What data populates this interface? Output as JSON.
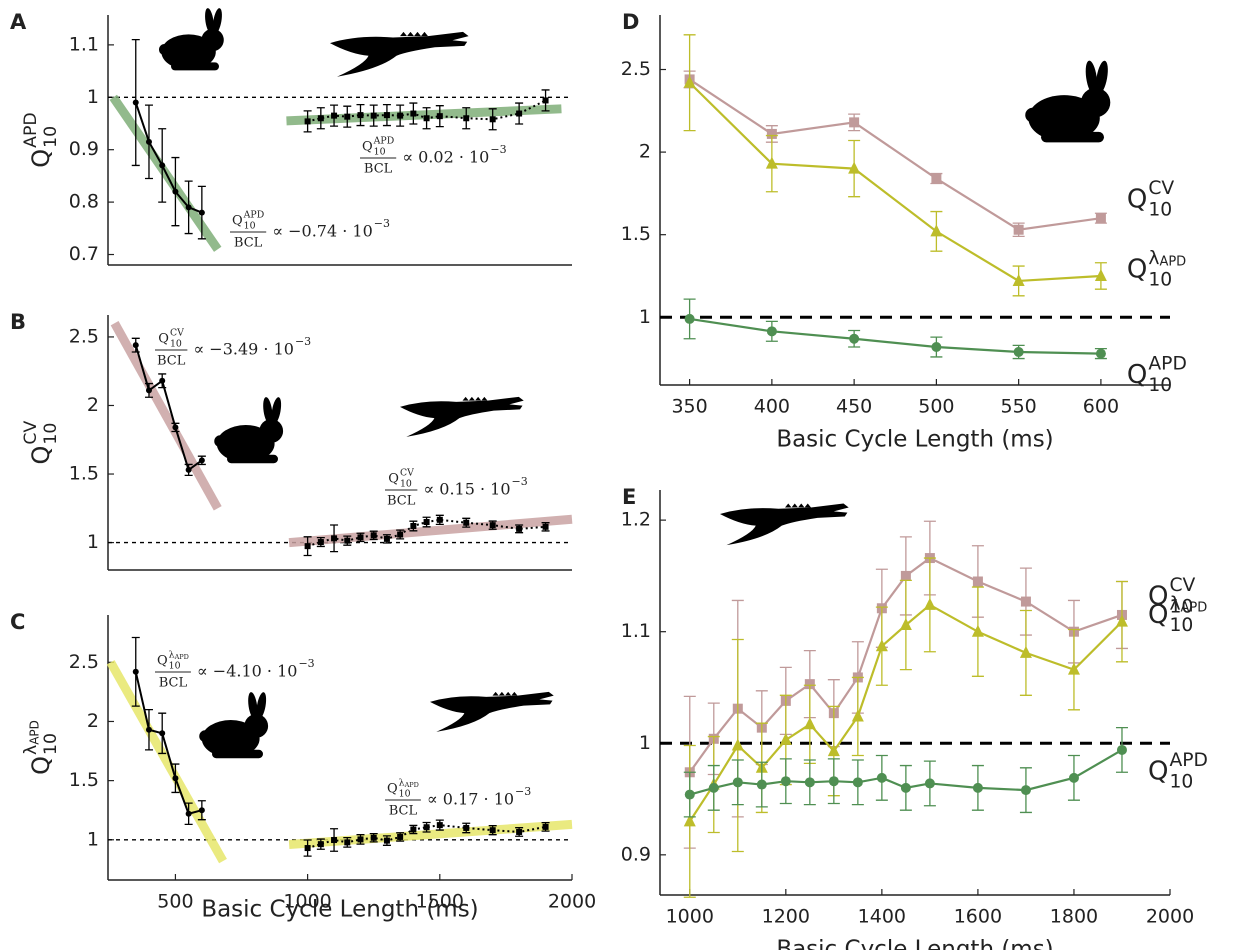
{
  "chart_data": [
    {
      "panel": "A",
      "type": "line",
      "xlim": [
        245,
        2000
      ],
      "ylim": [
        0.68,
        1.157
      ],
      "yticks": [
        0.7,
        0.8,
        0.9,
        1,
        1.1
      ],
      "refline": 1,
      "ylabel": {
        "base": "Q",
        "sub": "10",
        "sup": "APD"
      },
      "fits": [
        {
          "color": "#7fae78",
          "x": [
            265,
            660
          ],
          "y": [
            1.0,
            0.71
          ]
        },
        {
          "color": "#7fae78",
          "x": [
            920,
            1960
          ],
          "y": [
            0.955,
            0.978
          ]
        }
      ],
      "series": [
        {
          "color": "#000000",
          "style": "solid",
          "marker": "circle",
          "x": [
            350,
            400,
            450,
            500,
            550,
            600
          ],
          "values": [
            0.99,
            0.915,
            0.87,
            0.82,
            0.79,
            0.78
          ],
          "errors": [
            0.12,
            0.07,
            0.07,
            0.065,
            0.05,
            0.05
          ]
        },
        {
          "color": "#000000",
          "style": "dotted",
          "marker": "square",
          "x": [
            1000,
            1050,
            1100,
            1150,
            1200,
            1250,
            1300,
            1350,
            1400,
            1450,
            1500,
            1600,
            1700,
            1800,
            1900
          ],
          "values": [
            0.954,
            0.96,
            0.965,
            0.963,
            0.966,
            0.965,
            0.966,
            0.965,
            0.969,
            0.96,
            0.964,
            0.96,
            0.958,
            0.969,
            0.994
          ],
          "errors": [
            0.02,
            0.02,
            0.02,
            0.02,
            0.02,
            0.02,
            0.02,
            0.02,
            0.02,
            0.02,
            0.02,
            0.02,
            0.02,
            0.02,
            0.02
          ]
        }
      ],
      "annotations": [
        {
          "num": {
            "base": "Q",
            "sub": "10",
            "sup": "APD"
          },
          "den": "BCL",
          "rel": "∝ −0.74 · 10",
          "exp": "−3"
        },
        {
          "num": {
            "base": "Q",
            "sub": "10",
            "sup": "APD"
          },
          "den": "BCL",
          "rel": "∝ 0.02 · 10",
          "exp": "−3"
        }
      ]
    },
    {
      "panel": "B",
      "type": "line",
      "xlim": [
        245,
        2000
      ],
      "ylim": [
        0.8,
        2.66
      ],
      "yticks": [
        1,
        1.5,
        2,
        2.5
      ],
      "refline": 1,
      "ylabel": {
        "base": "Q",
        "sub": "10",
        "sup": "CV"
      },
      "fits": [
        {
          "color": "#c9a2a2",
          "x": [
            270,
            660
          ],
          "y": [
            2.6,
            1.25
          ]
        },
        {
          "color": "#c9a2a2",
          "x": [
            930,
            2000
          ],
          "y": [
            1.0,
            1.17
          ]
        }
      ],
      "series": [
        {
          "color": "#000000",
          "style": "solid",
          "marker": "circle",
          "x": [
            350,
            400,
            450,
            500,
            550,
            600
          ],
          "values": [
            2.44,
            2.11,
            2.18,
            1.84,
            1.53,
            1.6
          ],
          "errors": [
            0.05,
            0.05,
            0.05,
            0.03,
            0.04,
            0.03
          ]
        },
        {
          "color": "#000000",
          "style": "dotted",
          "marker": "square",
          "x": [
            1000,
            1050,
            1100,
            1150,
            1200,
            1250,
            1300,
            1350,
            1400,
            1450,
            1500,
            1600,
            1700,
            1800,
            1900
          ],
          "values": [
            0.974,
            1.004,
            1.031,
            1.014,
            1.038,
            1.053,
            1.027,
            1.059,
            1.121,
            1.15,
            1.166,
            1.145,
            1.127,
            1.1,
            1.115
          ],
          "errors": [
            0.068,
            0.032,
            0.097,
            0.033,
            0.03,
            0.03,
            0.03,
            0.032,
            0.035,
            0.035,
            0.033,
            0.032,
            0.03,
            0.028,
            0.03
          ]
        }
      ],
      "annotations": [
        {
          "num": {
            "base": "Q",
            "sub": "10",
            "sup": "CV"
          },
          "den": "BCL",
          "rel": "∝ −3.49 · 10",
          "exp": "−3"
        },
        {
          "num": {
            "base": "Q",
            "sub": "10",
            "sup": "CV"
          },
          "den": "BCL",
          "rel": "∝ 0.15 · 10",
          "exp": "−3"
        }
      ]
    },
    {
      "panel": "C",
      "type": "line",
      "xlim": [
        245,
        2000
      ],
      "ylim": [
        0.66,
        2.9
      ],
      "yticks": [
        1,
        1.5,
        2,
        2.5
      ],
      "xticks": [
        500,
        1000,
        1500,
        2000
      ],
      "refline": 1,
      "xlabel": "Basic Cycle Length (ms)",
      "ylabel": {
        "base": "Q",
        "sub": "10",
        "sup": "λ",
        "supsub": "APD"
      },
      "fits": [
        {
          "color": "#e6e66a",
          "x": [
            255,
            680
          ],
          "y": [
            2.5,
            0.82
          ]
        },
        {
          "color": "#e6e66a",
          "x": [
            930,
            2000
          ],
          "y": [
            0.96,
            1.13
          ]
        }
      ],
      "series": [
        {
          "color": "#000000",
          "style": "solid",
          "marker": "circle",
          "x": [
            350,
            400,
            450,
            500,
            550,
            600
          ],
          "values": [
            2.42,
            1.93,
            1.9,
            1.52,
            1.22,
            1.25
          ],
          "errors": [
            0.29,
            0.17,
            0.17,
            0.12,
            0.09,
            0.08
          ]
        },
        {
          "color": "#000000",
          "style": "dotted",
          "marker": "square",
          "x": [
            1000,
            1050,
            1100,
            1150,
            1200,
            1250,
            1300,
            1350,
            1400,
            1450,
            1500,
            1600,
            1700,
            1800,
            1900
          ],
          "values": [
            0.93,
            0.963,
            0.998,
            0.978,
            1.003,
            1.017,
            0.993,
            1.024,
            1.087,
            1.106,
            1.124,
            1.1,
            1.081,
            1.066,
            1.109
          ],
          "errors": [
            0.068,
            0.043,
            0.095,
            0.04,
            0.04,
            0.035,
            0.04,
            0.035,
            0.035,
            0.04,
            0.042,
            0.04,
            0.038,
            0.036,
            0.036
          ]
        }
      ],
      "annotations": [
        {
          "num": {
            "base": "Q",
            "sub": "10",
            "sup": "λ",
            "supsub": "APD"
          },
          "den": "BCL",
          "rel": "∝ −4.10 · 10",
          "exp": "−3"
        },
        {
          "num": {
            "base": "Q",
            "sub": "10",
            "sup": "λ",
            "supsub": "APD"
          },
          "den": "BCL",
          "rel": "∝ 0.17 · 10",
          "exp": "−3"
        }
      ]
    },
    {
      "panel": "D",
      "type": "line",
      "xlim": [
        332,
        642
      ],
      "ylim": [
        0.59,
        2.83
      ],
      "xticks": [
        350,
        400,
        450,
        500,
        550,
        600
      ],
      "yticks": [
        1,
        1.5,
        2,
        2.5
      ],
      "refline": 1,
      "xlabel": "Basic Cycle Length (ms)",
      "series": [
        {
          "name": {
            "base": "Q",
            "sub": "10",
            "sup": "CV"
          },
          "color": "#c09a9a",
          "label_color": "#7a5c5c",
          "style": "solid",
          "marker": "square",
          "x": [
            350,
            400,
            450,
            500,
            550,
            600
          ],
          "values": [
            2.44,
            2.11,
            2.18,
            1.84,
            1.53,
            1.6
          ],
          "errors": [
            0.05,
            0.05,
            0.05,
            0.03,
            0.04,
            0.03
          ]
        },
        {
          "name": {
            "base": "Q",
            "sub": "10",
            "sup": "λ",
            "supsub": "APD"
          },
          "color": "#bdbd2a",
          "label_color": "#9a9a20",
          "style": "solid",
          "marker": "triangle",
          "x": [
            350,
            400,
            450,
            500,
            550,
            600
          ],
          "values": [
            2.42,
            1.93,
            1.9,
            1.52,
            1.22,
            1.25
          ],
          "errors": [
            0.29,
            0.17,
            0.17,
            0.12,
            0.09,
            0.08
          ]
        },
        {
          "name": {
            "base": "Q",
            "sub": "10",
            "sup": "APD"
          },
          "color": "#4f8f52",
          "label_color": "#2f6b32",
          "style": "solid",
          "marker": "circle",
          "x": [
            350,
            400,
            450,
            500,
            550,
            600
          ],
          "values": [
            0.99,
            0.915,
            0.87,
            0.82,
            0.79,
            0.78
          ],
          "errors": [
            0.12,
            0.06,
            0.05,
            0.06,
            0.04,
            0.03
          ]
        }
      ]
    },
    {
      "panel": "E",
      "type": "line",
      "xlim": [
        938,
        2000
      ],
      "ylim": [
        0.864,
        1.227
      ],
      "xticks": [
        1000,
        1200,
        1400,
        1600,
        1800,
        2000
      ],
      "yticks": [
        0.9,
        1,
        1.1,
        1.2
      ],
      "refline": 1,
      "xlabel": "Basic Cycle Length (ms)",
      "series": [
        {
          "name": {
            "base": "Q",
            "sub": "10",
            "sup": "CV"
          },
          "color": "#c09a9a",
          "label_color": "#7a5c5c",
          "style": "solid",
          "marker": "square",
          "x": [
            1000,
            1050,
            1100,
            1150,
            1200,
            1250,
            1300,
            1350,
            1400,
            1450,
            1500,
            1600,
            1700,
            1800,
            1900
          ],
          "values": [
            0.974,
            1.004,
            1.031,
            1.014,
            1.038,
            1.053,
            1.027,
            1.059,
            1.121,
            1.15,
            1.166,
            1.145,
            1.127,
            1.1,
            1.115
          ],
          "errors": [
            0.068,
            0.032,
            0.097,
            0.033,
            0.03,
            0.03,
            0.03,
            0.032,
            0.035,
            0.035,
            0.033,
            0.032,
            0.03,
            0.028,
            0.03
          ]
        },
        {
          "name": {
            "base": "Q",
            "sub": "10",
            "sup": "λ",
            "supsub": "APD"
          },
          "color": "#bdbd2a",
          "label_color": "#7a7a18",
          "style": "solid",
          "marker": "triangle",
          "x": [
            1000,
            1050,
            1100,
            1150,
            1200,
            1250,
            1300,
            1350,
            1400,
            1450,
            1500,
            1600,
            1700,
            1800,
            1900
          ],
          "values": [
            0.93,
            0.963,
            0.998,
            0.978,
            1.003,
            1.017,
            0.993,
            1.024,
            1.087,
            1.106,
            1.124,
            1.1,
            1.081,
            1.066,
            1.109
          ],
          "errors": [
            0.068,
            0.043,
            0.095,
            0.04,
            0.04,
            0.035,
            0.04,
            0.035,
            0.035,
            0.04,
            0.042,
            0.04,
            0.038,
            0.036,
            0.036
          ]
        },
        {
          "name": {
            "base": "Q",
            "sub": "10",
            "sup": "APD"
          },
          "color": "#4f8f52",
          "label_color": "#2f6b32",
          "style": "solid",
          "marker": "circle",
          "x": [
            1000,
            1050,
            1100,
            1150,
            1200,
            1250,
            1300,
            1350,
            1400,
            1450,
            1500,
            1600,
            1700,
            1800,
            1900
          ],
          "values": [
            0.954,
            0.96,
            0.965,
            0.963,
            0.966,
            0.965,
            0.966,
            0.965,
            0.969,
            0.96,
            0.964,
            0.96,
            0.958,
            0.969,
            0.994
          ],
          "errors": [
            0.02,
            0.02,
            0.02,
            0.02,
            0.02,
            0.02,
            0.02,
            0.02,
            0.02,
            0.02,
            0.02,
            0.02,
            0.02,
            0.02,
            0.02
          ]
        }
      ]
    }
  ]
}
